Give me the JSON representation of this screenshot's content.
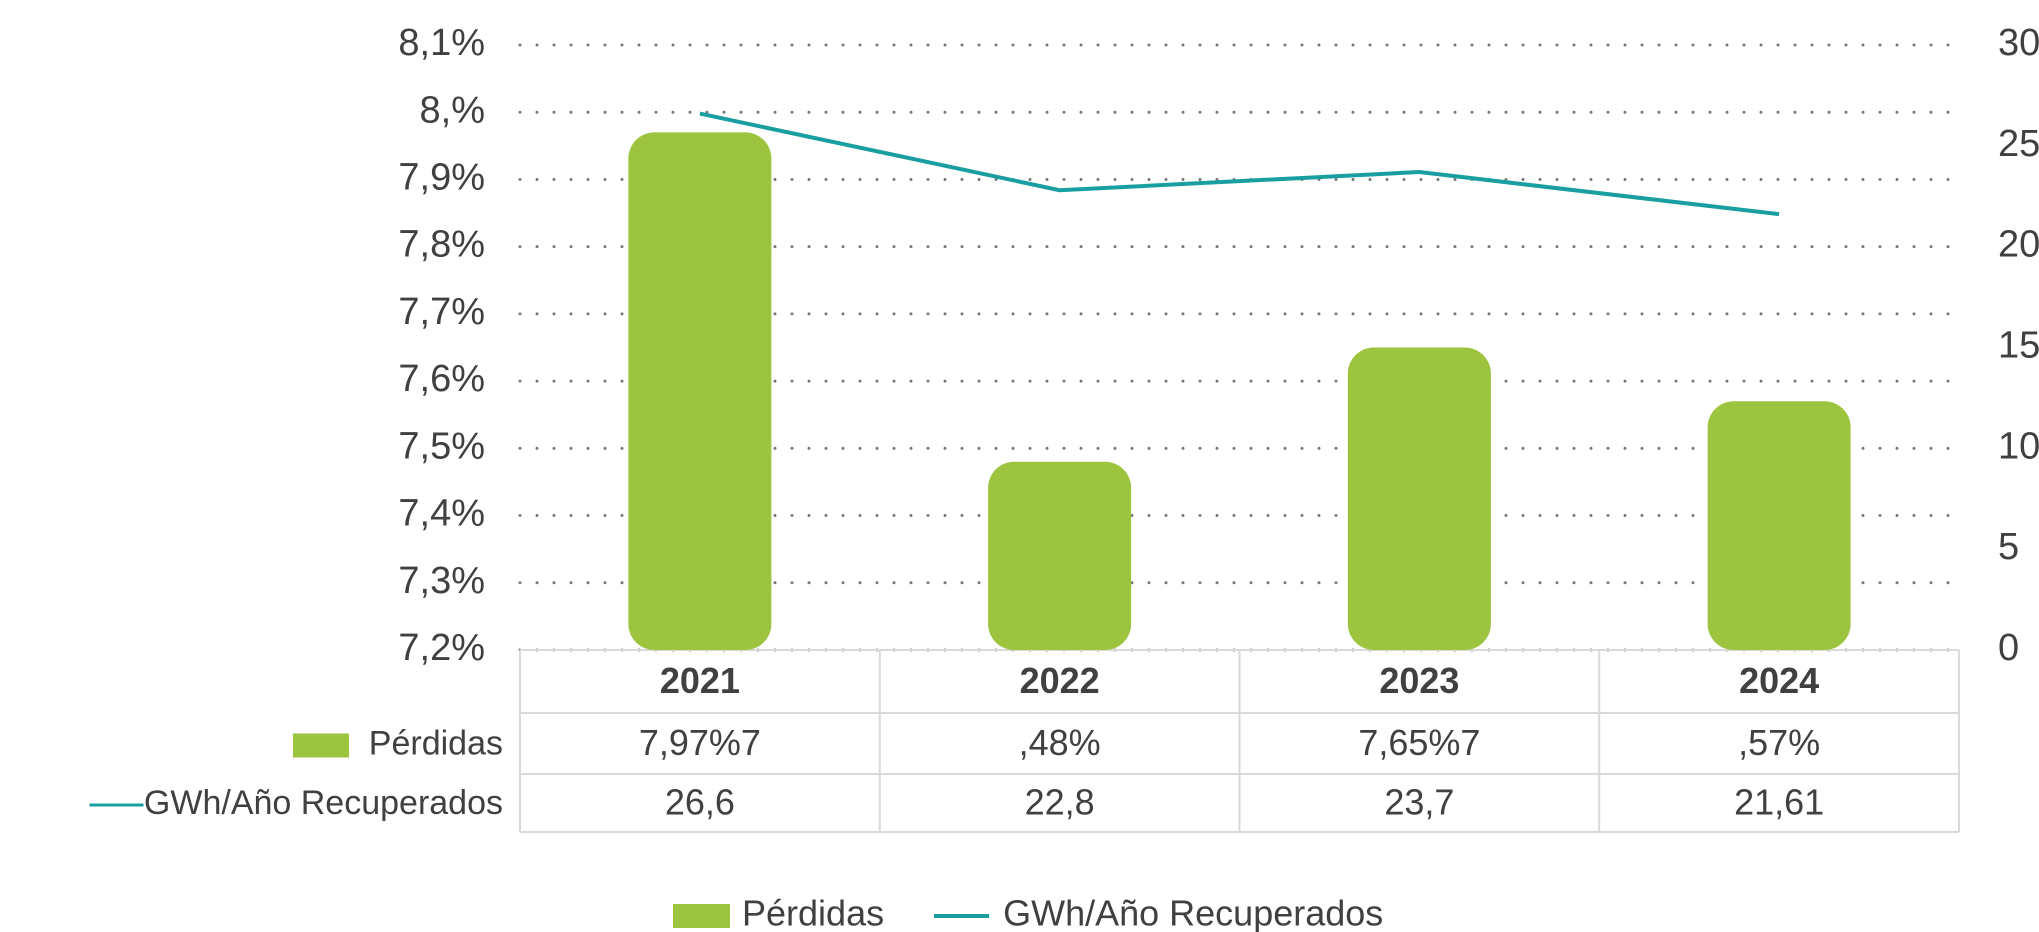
{
  "chart_data": {
    "type": "bar",
    "categories": [
      "2021",
      "2022",
      "2023",
      "2024"
    ],
    "series": [
      {
        "name": "Pérdidas",
        "type": "bar",
        "color": "#9dc43f",
        "values": [
          7.97,
          7.48,
          7.65,
          7.57
        ],
        "value_labels": [
          "7,97%7",
          ",48%",
          "7,65%7",
          ",57%"
        ]
      },
      {
        "name": "GWh/Año Recuperados",
        "type": "line",
        "color": "#1a9fa0",
        "axis": "y2",
        "values": [
          26.6,
          22.8,
          23.7,
          21.61
        ],
        "value_labels": [
          "26,6",
          "22,8",
          "23,7",
          "21,61"
        ]
      }
    ],
    "ylim": [
      7.2,
      8.1
    ],
    "yticks": [
      {
        "value": 7.2,
        "label": "7,2%"
      },
      {
        "value": 7.3,
        "label": "7,3%"
      },
      {
        "value": 7.4,
        "label": "7,4%"
      },
      {
        "value": 7.5,
        "label": "7,5%"
      },
      {
        "value": 7.6,
        "label": "7,6%"
      },
      {
        "value": 7.7,
        "label": "7,7%"
      },
      {
        "value": 7.8,
        "label": "7,8%"
      },
      {
        "value": 7.9,
        "label": "7,9%"
      },
      {
        "value": 8.0,
        "label": "8,%"
      },
      {
        "value": 8.1,
        "label": "8,1%"
      }
    ],
    "y2lim": [
      0,
      30
    ],
    "y2ticks": [
      0,
      5,
      10,
      15,
      20,
      25,
      30
    ],
    "grid": true,
    "legend": "bottom"
  }
}
